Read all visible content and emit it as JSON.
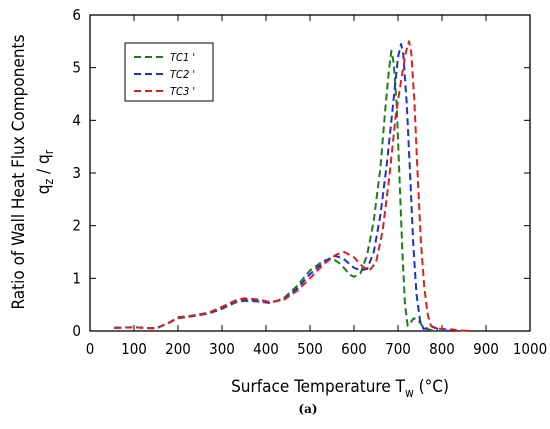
{
  "chart_data": {
    "type": "line",
    "title": "",
    "xlabel": {
      "main": "Surface Temperature  T",
      "sub": "w",
      "after": " (°C)"
    },
    "ylabel": {
      "line1": "Ratio of Wall Heat Flux Components",
      "q1": "q",
      "s1": "z",
      "slash": " / ",
      "q2": "q",
      "s2": "r"
    },
    "xlim": [
      0,
      1000
    ],
    "ylim": [
      0,
      6
    ],
    "xticks": [
      0,
      100,
      200,
      300,
      400,
      500,
      600,
      700,
      800,
      900,
      1000
    ],
    "yticks": [
      0,
      1,
      2,
      3,
      4,
      5,
      6
    ],
    "grid": false,
    "legend_position": "top-left",
    "series": [
      {
        "name": "TC1 '",
        "color": "#1a7f1a",
        "points": [
          [
            55,
            0.06
          ],
          [
            100,
            0.07
          ],
          [
            150,
            0.05
          ],
          [
            180,
            0.16
          ],
          [
            200,
            0.24
          ],
          [
            230,
            0.28
          ],
          [
            270,
            0.33
          ],
          [
            300,
            0.42
          ],
          [
            330,
            0.54
          ],
          [
            350,
            0.57
          ],
          [
            380,
            0.56
          ],
          [
            410,
            0.53
          ],
          [
            440,
            0.62
          ],
          [
            470,
            0.85
          ],
          [
            500,
            1.15
          ],
          [
            530,
            1.33
          ],
          [
            550,
            1.38
          ],
          [
            570,
            1.27
          ],
          [
            590,
            1.07
          ],
          [
            600,
            1.03
          ],
          [
            615,
            1.1
          ],
          [
            630,
            1.45
          ],
          [
            645,
            2.1
          ],
          [
            660,
            3.1
          ],
          [
            672,
            4.3
          ],
          [
            680,
            5.0
          ],
          [
            685,
            5.32
          ],
          [
            690,
            5.1
          ],
          [
            697,
            4.3
          ],
          [
            703,
            3.0
          ],
          [
            710,
            1.5
          ],
          [
            716,
            0.5
          ],
          [
            722,
            0.1
          ],
          [
            728,
            0.15
          ],
          [
            735,
            0.24
          ],
          [
            745,
            0.22
          ],
          [
            755,
            0.1
          ],
          [
            765,
            0.04
          ],
          [
            780,
            0.01
          ],
          [
            800,
            0.0
          ]
        ]
      },
      {
        "name": "TC2 '",
        "color": "#1e2fd6",
        "points": [
          [
            55,
            0.06
          ],
          [
            100,
            0.07
          ],
          [
            150,
            0.05
          ],
          [
            180,
            0.16
          ],
          [
            200,
            0.25
          ],
          [
            230,
            0.28
          ],
          [
            270,
            0.34
          ],
          [
            300,
            0.44
          ],
          [
            330,
            0.56
          ],
          [
            350,
            0.6
          ],
          [
            380,
            0.58
          ],
          [
            410,
            0.54
          ],
          [
            440,
            0.6
          ],
          [
            470,
            0.8
          ],
          [
            500,
            1.08
          ],
          [
            530,
            1.3
          ],
          [
            555,
            1.43
          ],
          [
            575,
            1.38
          ],
          [
            600,
            1.2
          ],
          [
            615,
            1.15
          ],
          [
            630,
            1.18
          ],
          [
            645,
            1.5
          ],
          [
            660,
            2.2
          ],
          [
            675,
            3.2
          ],
          [
            690,
            4.4
          ],
          [
            700,
            5.2
          ],
          [
            707,
            5.45
          ],
          [
            712,
            5.25
          ],
          [
            720,
            4.3
          ],
          [
            728,
            2.9
          ],
          [
            735,
            1.6
          ],
          [
            742,
            0.7
          ],
          [
            750,
            0.2
          ],
          [
            758,
            0.04
          ],
          [
            770,
            0.06
          ],
          [
            780,
            0.08
          ],
          [
            790,
            0.04
          ],
          [
            805,
            0.01
          ],
          [
            820,
            0.0
          ]
        ]
      },
      {
        "name": "TC3 '",
        "color": "#e0201e",
        "points": [
          [
            55,
            0.06
          ],
          [
            100,
            0.07
          ],
          [
            150,
            0.05
          ],
          [
            180,
            0.16
          ],
          [
            200,
            0.26
          ],
          [
            230,
            0.29
          ],
          [
            270,
            0.35
          ],
          [
            300,
            0.46
          ],
          [
            330,
            0.58
          ],
          [
            350,
            0.62
          ],
          [
            380,
            0.6
          ],
          [
            410,
            0.55
          ],
          [
            440,
            0.59
          ],
          [
            470,
            0.76
          ],
          [
            500,
            1.0
          ],
          [
            530,
            1.26
          ],
          [
            560,
            1.45
          ],
          [
            578,
            1.5
          ],
          [
            600,
            1.4
          ],
          [
            620,
            1.22
          ],
          [
            635,
            1.15
          ],
          [
            650,
            1.3
          ],
          [
            665,
            1.9
          ],
          [
            680,
            2.9
          ],
          [
            695,
            4.1
          ],
          [
            708,
            4.8
          ],
          [
            718,
            5.3
          ],
          [
            725,
            5.5
          ],
          [
            730,
            5.3
          ],
          [
            737,
            4.4
          ],
          [
            745,
            2.9
          ],
          [
            752,
            1.7
          ],
          [
            760,
            0.8
          ],
          [
            768,
            0.3
          ],
          [
            775,
            0.1
          ],
          [
            785,
            0.05
          ],
          [
            800,
            0.04
          ],
          [
            820,
            0.03
          ],
          [
            845,
            0.01
          ],
          [
            870,
            0.0
          ]
        ]
      }
    ]
  },
  "caption": "(a)"
}
